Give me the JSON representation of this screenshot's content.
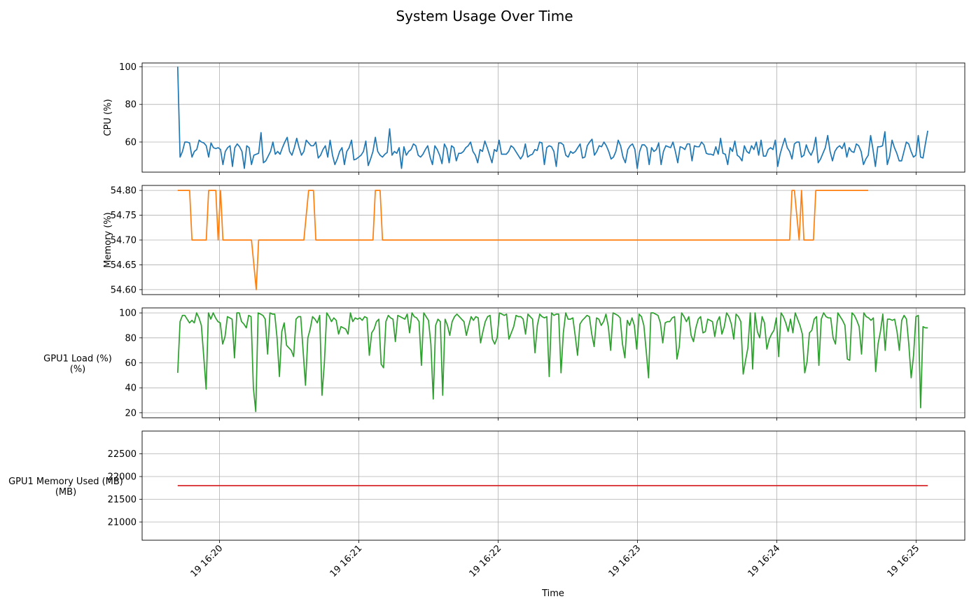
{
  "chart_data": {
    "type": "line",
    "title": "System Usage Over Time",
    "xlabel": "Time",
    "x_ticks": [
      "19 16:20",
      "19 16:21",
      "19 16:22",
      "19 16:23",
      "19 16:24",
      "19 16:25"
    ],
    "x_range": [
      "16:19:42",
      "16:25:05"
    ],
    "xlim": [
      "16:19:32",
      "16:25:21"
    ],
    "grid": true,
    "panels": [
      {
        "name": "cpu",
        "ylabel": "CPU (%)",
        "color": "#1f77b4",
        "ylim": [
          44,
          102
        ],
        "yticks": [
          "60",
          "80",
          "100"
        ],
        "ytick_values": [
          60,
          80,
          100
        ],
        "values": [
          100,
          52,
          55,
          60,
          60,
          59.5,
          52,
          55,
          56,
          61,
          60,
          59.5,
          58,
          52,
          59.5,
          57,
          56.5,
          57,
          56,
          48,
          55,
          57,
          58,
          47,
          57,
          59,
          57.5,
          55,
          46,
          58,
          57,
          48,
          53,
          53.5,
          54,
          65,
          49,
          50,
          52.5,
          55,
          60,
          53.5,
          55,
          53.5,
          57,
          60,
          62.5,
          55,
          53,
          57,
          62,
          57,
          53,
          55,
          61,
          59.5,
          58,
          58,
          60,
          51.5,
          53,
          56,
          58,
          52,
          61,
          53,
          48,
          51,
          55,
          57,
          48,
          55,
          57,
          61,
          50.5,
          51,
          52,
          53,
          55,
          60.5,
          47.5,
          51,
          55,
          62.5,
          55,
          53,
          52,
          53.5,
          54.5,
          67,
          53,
          55,
          54,
          57,
          46,
          57.5,
          53,
          55,
          56,
          59,
          58,
          53,
          52,
          53.5,
          56,
          58,
          52,
          48,
          58,
          56,
          53,
          48.5,
          59,
          56.5,
          49,
          58,
          57,
          50,
          54,
          54,
          55,
          57,
          58,
          60,
          55,
          53,
          49,
          56,
          55,
          60.5,
          57,
          53,
          49,
          56,
          55,
          61,
          53.5,
          53.5,
          53.5,
          55,
          58,
          57,
          55,
          53,
          51,
          53,
          59,
          52,
          53,
          53.5,
          56,
          55.5,
          60,
          59.5,
          48,
          57,
          58,
          57.5,
          55,
          47,
          59.5,
          59.5,
          58.5,
          53,
          52,
          55,
          54,
          55,
          57,
          59,
          51.5,
          52,
          58,
          60,
          61.5,
          53,
          55,
          58,
          57.5,
          60,
          58,
          55,
          51,
          52,
          55,
          61,
          58,
          52,
          49,
          56,
          58,
          59,
          56,
          46,
          55,
          58.5,
          58.5,
          57,
          48,
          57,
          55,
          56,
          59.5,
          48,
          55,
          58,
          57.5,
          57,
          60,
          55,
          49,
          57.5,
          57,
          56,
          59,
          59,
          50,
          58,
          57.5,
          57.5,
          60,
          58.5,
          54,
          53.5,
          53.5,
          53,
          57.5,
          53.5,
          62,
          54,
          53.5,
          48,
          57,
          55,
          60.5,
          53,
          52,
          50,
          58,
          55,
          54,
          58,
          56,
          60,
          53,
          61,
          52.5,
          52.5,
          56,
          57,
          56,
          61,
          47,
          53.5,
          58,
          62,
          57,
          55,
          51,
          59,
          60,
          60,
          52,
          53,
          58.5,
          55,
          53,
          56,
          62.5,
          49,
          51,
          54,
          57,
          63.5,
          55,
          50,
          55,
          57,
          58,
          56.5,
          59.5,
          52,
          57,
          55,
          54.5,
          59,
          58,
          55,
          48,
          51,
          53,
          63.5,
          56,
          47,
          57.5,
          57.5,
          58,
          65.5,
          48,
          52.5,
          61,
          57,
          54,
          50,
          50,
          55,
          60,
          59,
          55,
          52,
          53,
          63.5,
          52,
          51.5,
          59,
          66
        ]
      },
      {
        "name": "memory",
        "ylabel": "Memory (%)",
        "color": "#ff7f0e",
        "ylim": [
          54.59,
          54.81
        ],
        "yticks": [
          "54.60",
          "54.65",
          "54.70",
          "54.75",
          "54.80"
        ],
        "ytick_values": [
          54.6,
          54.65,
          54.7,
          54.75,
          54.8
        ],
        "segments": [
          [
            0,
            54.8
          ],
          [
            5,
            54.8
          ],
          [
            6,
            54.7
          ],
          [
            12,
            54.7
          ],
          [
            13,
            54.8
          ],
          [
            16,
            54.8
          ],
          [
            17,
            54.7
          ],
          [
            18,
            54.8
          ],
          [
            19,
            54.7
          ],
          [
            31,
            54.7
          ],
          [
            33,
            54.6
          ],
          [
            34,
            54.7
          ],
          [
            53,
            54.7
          ],
          [
            55,
            54.8
          ],
          [
            57,
            54.8
          ],
          [
            58,
            54.7
          ],
          [
            82,
            54.7
          ],
          [
            83,
            54.8
          ],
          [
            85,
            54.8
          ],
          [
            86,
            54.7
          ],
          [
            257,
            54.7
          ],
          [
            258,
            54.8
          ],
          [
            259,
            54.8
          ],
          [
            261,
            54.7
          ],
          [
            262,
            54.8
          ],
          [
            263,
            54.7
          ],
          [
            267,
            54.7
          ],
          [
            268,
            54.8
          ],
          [
            290,
            54.8
          ]
        ]
      },
      {
        "name": "gpu_load",
        "ylabel": "GPU1 Load (%)\n(%)",
        "color": "#2ca02c",
        "ylim": [
          16,
          104
        ],
        "yticks": [
          "20",
          "40",
          "60",
          "80",
          "100"
        ],
        "ytick_values": [
          20,
          40,
          60,
          80,
          100
        ],
        "values": [
          52,
          93,
          98,
          98,
          95,
          92,
          94,
          92,
          100,
          96,
          90,
          65,
          39,
          100,
          95,
          100,
          96,
          93,
          92,
          75,
          81,
          97,
          96,
          95,
          64,
          100,
          100,
          93,
          91,
          88,
          98,
          97,
          40,
          21,
          100,
          99,
          98,
          95,
          67,
          100,
          99,
          99,
          80,
          49,
          85,
          92,
          74,
          72,
          70,
          65,
          95,
          97,
          97,
          70,
          42,
          80,
          87,
          97,
          95,
          92,
          98,
          34,
          60,
          100,
          97,
          93,
          96,
          94,
          83,
          89,
          88,
          87,
          83,
          100,
          93,
          96,
          95,
          96,
          94,
          97,
          96,
          66,
          84,
          87,
          93,
          95,
          59,
          56,
          93,
          98,
          96,
          95,
          77,
          98,
          97,
          96,
          95,
          99,
          84,
          100,
          97,
          96,
          93,
          58,
          100,
          97,
          94,
          75,
          31,
          90,
          95,
          93,
          34,
          95,
          90,
          82,
          93,
          97,
          99,
          97,
          95,
          93,
          82,
          90,
          97,
          94,
          97,
          96,
          76,
          85,
          93,
          97,
          98,
          79,
          75,
          80,
          100,
          99,
          98,
          99,
          79,
          84,
          89,
          98,
          97,
          97,
          95,
          83,
          99,
          97,
          95,
          68,
          90,
          99,
          97,
          96,
          97,
          49,
          100,
          98,
          99,
          99,
          52,
          84,
          100,
          95,
          95,
          96,
          82,
          66,
          91,
          94,
          96,
          98,
          97,
          83,
          73,
          96,
          95,
          90,
          93,
          99,
          89,
          70,
          100,
          99,
          98,
          96,
          75,
          64,
          94,
          90,
          96,
          90,
          71,
          99,
          97,
          90,
          70,
          48,
          100,
          100,
          99,
          98,
          92,
          76,
          92,
          93,
          93,
          96,
          97,
          63,
          73,
          100,
          97,
          93,
          97,
          82,
          77,
          88,
          95,
          97,
          84,
          85,
          95,
          94,
          93,
          81,
          93,
          97,
          83,
          89,
          100,
          97,
          91,
          79,
          99,
          97,
          93,
          51,
          62,
          72,
          100,
          55,
          100,
          85,
          80,
          97,
          92,
          71,
          79,
          83,
          86,
          96,
          65,
          100,
          97,
          92,
          85,
          95,
          84,
          100,
          95,
          90,
          83,
          52,
          61,
          84,
          86,
          95,
          97,
          58,
          95,
          100,
          97,
          96,
          96,
          80,
          75,
          100,
          97,
          94,
          90,
          63,
          62,
          100,
          98,
          94,
          89,
          67,
          100,
          97,
          96,
          94,
          96,
          53,
          75,
          85,
          99,
          70,
          95,
          95,
          94,
          95,
          85,
          70,
          94,
          98,
          95,
          75,
          48,
          66,
          97,
          98,
          24,
          89,
          88,
          88
        ]
      },
      {
        "name": "gpu_mem",
        "ylabel": "GPU1 Memory Used (MB)\n(MB)",
        "color": "#d62728",
        "ylim": [
          20600,
          23000
        ],
        "yticks": [
          "21000",
          "21500",
          "22000",
          "22500"
        ],
        "ytick_values": [
          21000,
          21500,
          22000,
          22500
        ],
        "constant": 21800
      }
    ]
  }
}
